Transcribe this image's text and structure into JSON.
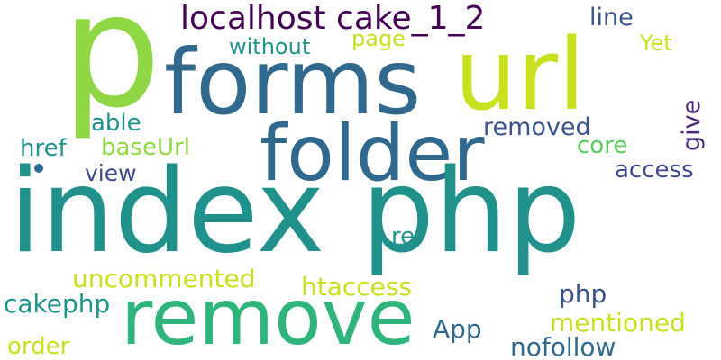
{
  "wordcloud": {
    "words": [
      {
        "text": "p",
        "color": "#8fd744"
      },
      {
        "text": "forms",
        "color": "#31688e"
      },
      {
        "text": "url",
        "color": "#c8e020"
      },
      {
        "text": "localhost cake_1_2",
        "color": "#440154"
      },
      {
        "text": "line",
        "color": "#3b528b"
      },
      {
        "text": "page",
        "color": "#c8e020"
      },
      {
        "text": "without",
        "color": "#21918c"
      },
      {
        "text": "Yet",
        "color": "#c8e020"
      },
      {
        "text": "able",
        "color": "#21918c"
      },
      {
        "text": "folder",
        "color": "#31688e"
      },
      {
        "text": "removed",
        "color": "#3b528b"
      },
      {
        "text": "give",
        "color": "#482878"
      },
      {
        "text": "href",
        "color": "#21918c"
      },
      {
        "text": "baseUrl",
        "color": "#8fd744"
      },
      {
        "text": "core",
        "color": "#5ec962"
      },
      {
        "text": "view",
        "color": "#3e4989"
      },
      {
        "text": "access",
        "color": "#3e4989"
      },
      {
        "text": "index php",
        "color": "#21918c"
      },
      {
        "text": "rel",
        "color": "#21918c"
      },
      {
        "text": "uncommented",
        "color": "#c8e020"
      },
      {
        "text": "htaccess",
        "color": "#c8e020"
      },
      {
        "text": "remove",
        "color": "#2fb47c"
      },
      {
        "text": "cakephp",
        "color": "#21918c"
      },
      {
        "text": "php",
        "color": "#3b528b"
      },
      {
        "text": "App",
        "color": "#31688e"
      },
      {
        "text": "mentioned",
        "color": "#c8e020"
      },
      {
        "text": "order",
        "color": "#c8e020"
      },
      {
        "text": "nofollow",
        "color": "#31688e"
      }
    ]
  }
}
